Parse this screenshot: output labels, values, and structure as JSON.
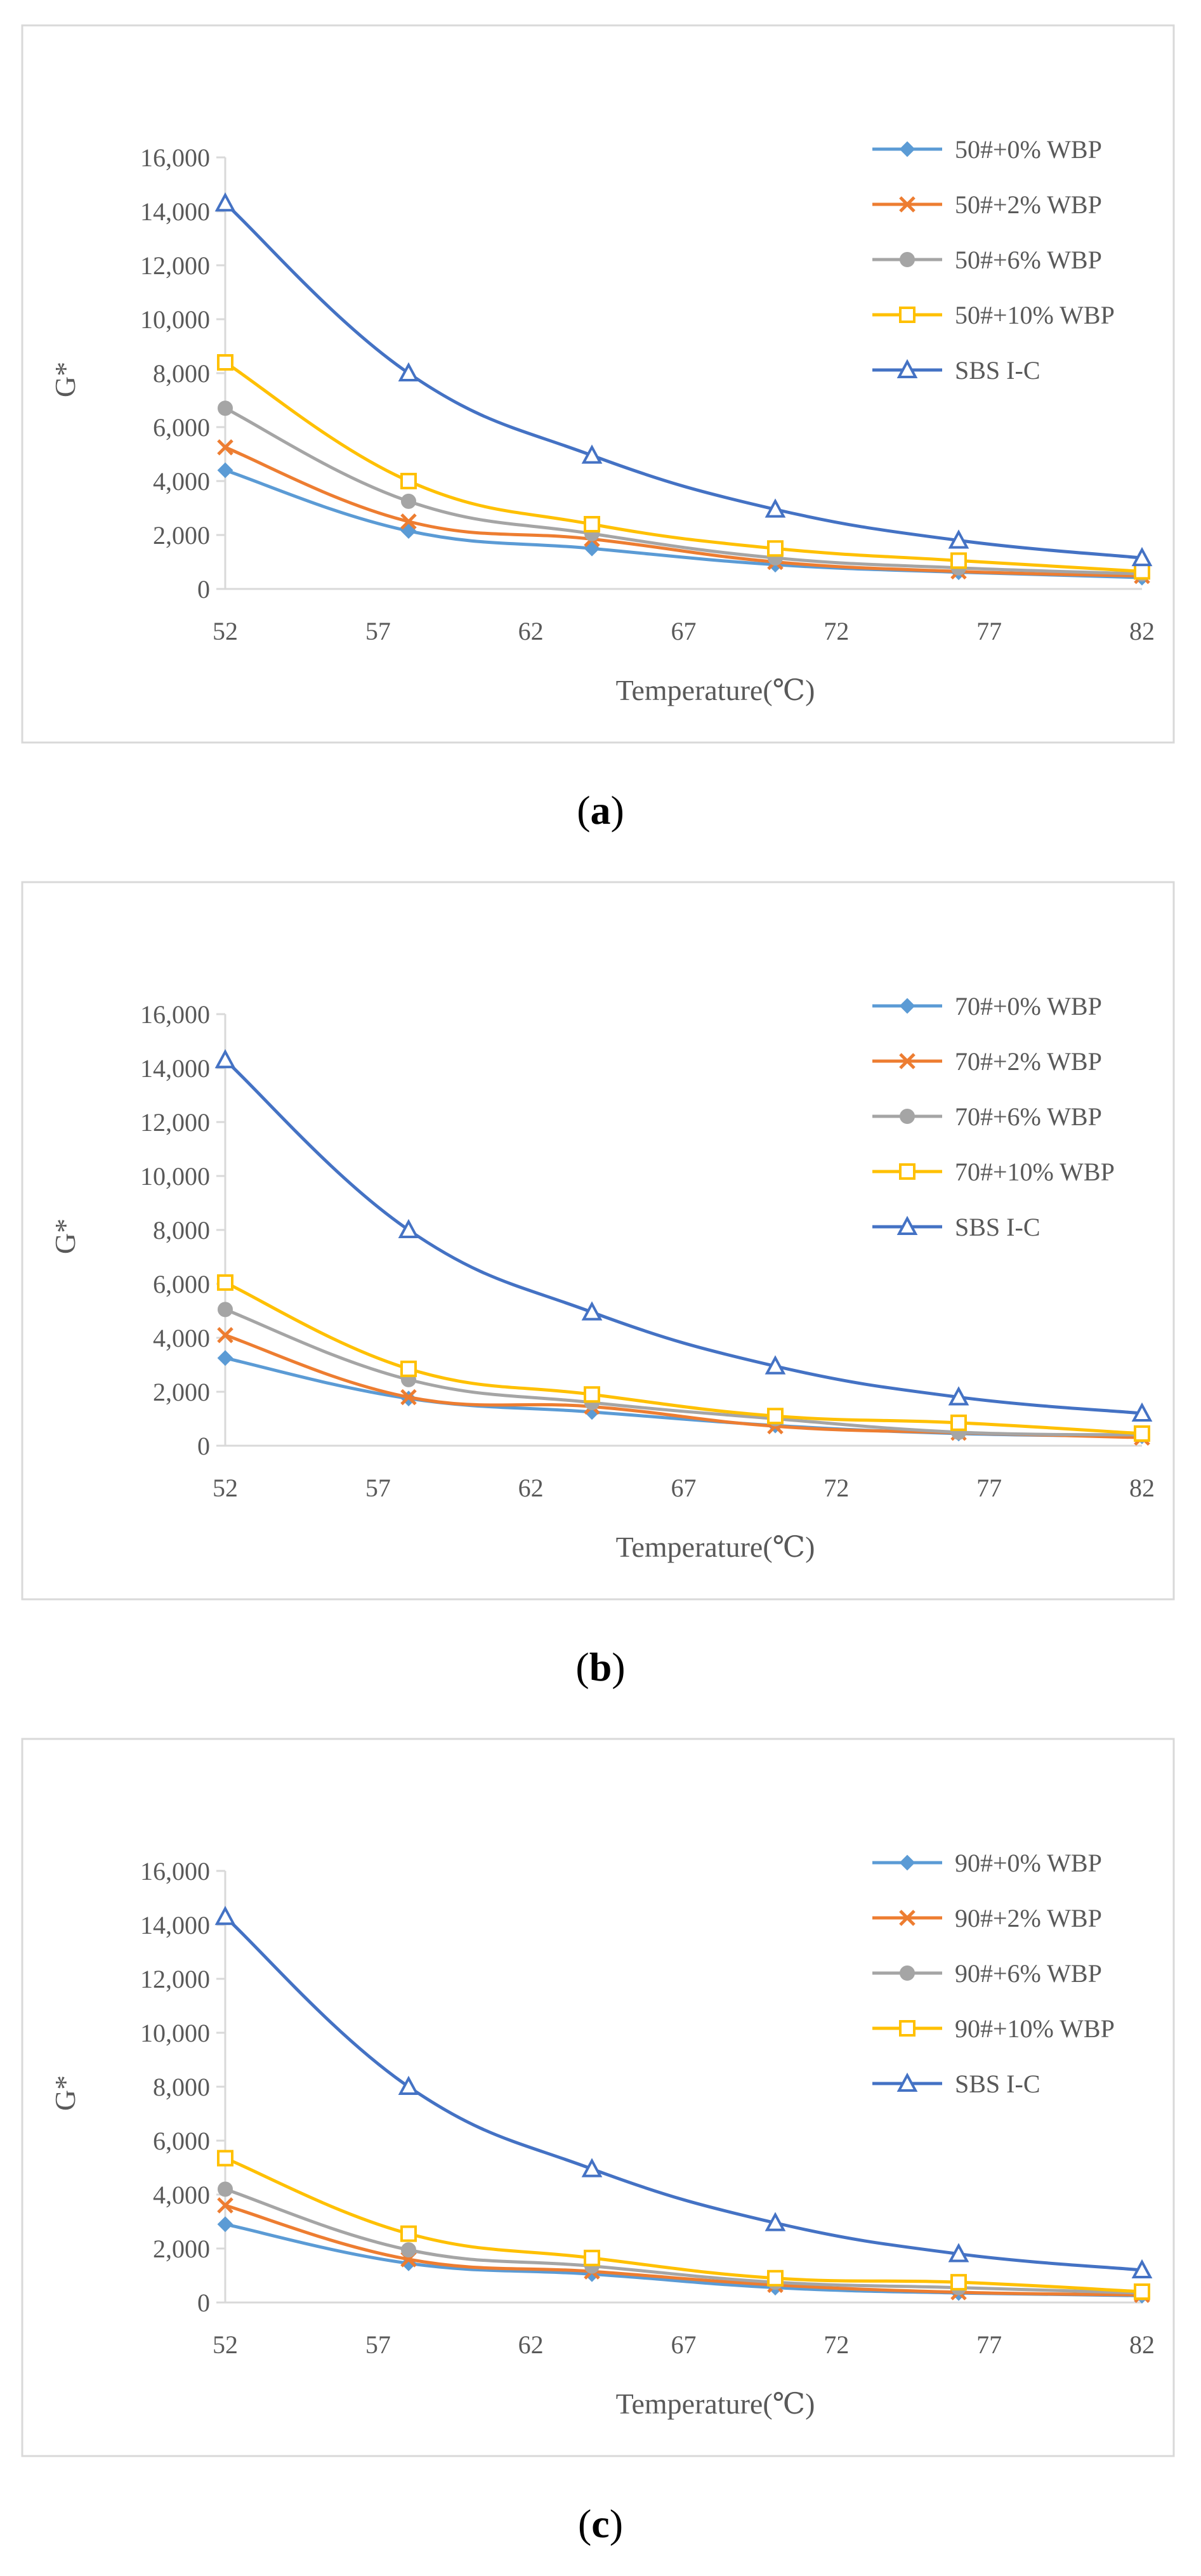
{
  "colors": {
    "s1": "#5B9BD5",
    "s2": "#ED7D31",
    "s3": "#A5A5A5",
    "s4": "#FFC000",
    "s5": "#4472C4",
    "axis": "#D9D9D9",
    "text": "#595959",
    "frame": "#D9D9D9"
  },
  "chart_data": [
    {
      "type": "line",
      "panel": "(a)",
      "caption_open": "(",
      "caption_letter": "a",
      "caption_close": ")",
      "xlabel": "Temperature(℃)",
      "ylabel": "G*",
      "x": [
        52,
        58,
        64,
        70,
        76,
        82
      ],
      "xticks": [
        "52",
        "57",
        "62",
        "67",
        "72",
        "77",
        "82"
      ],
      "yticks": [
        "0",
        "2,000",
        "4,000",
        "6,000",
        "8,000",
        "10,000",
        "12,000",
        "14,000",
        "16,000"
      ],
      "xlim": [
        52,
        82
      ],
      "ylim": [
        0,
        16000
      ],
      "series": [
        {
          "name": "50#+0% WBP",
          "marker": "diamond",
          "values": [
            4400,
            2150,
            1500,
            900,
            620,
            420
          ]
        },
        {
          "name": "50#+2% WBP",
          "marker": "x",
          "values": [
            5250,
            2500,
            1850,
            1000,
            650,
            480
          ]
        },
        {
          "name": "50#+6% WBP",
          "marker": "circle",
          "values": [
            6700,
            3250,
            2050,
            1150,
            780,
            560
          ]
        },
        {
          "name": "50#+10% WBP",
          "marker": "square",
          "values": [
            8400,
            4000,
            2400,
            1500,
            1050,
            650
          ]
        },
        {
          "name": "SBS I-C",
          "marker": "triangle",
          "values": [
            14300,
            8000,
            4950,
            2950,
            1800,
            1150
          ]
        }
      ]
    },
    {
      "type": "line",
      "panel": "(b)",
      "caption_open": "(",
      "caption_letter": "b",
      "caption_close": ")",
      "xlabel": "Temperature(℃)",
      "ylabel": "G*",
      "x": [
        52,
        58,
        64,
        70,
        76,
        82
      ],
      "xticks": [
        "52",
        "57",
        "62",
        "67",
        "72",
        "77",
        "82"
      ],
      "yticks": [
        "0",
        "2,000",
        "4,000",
        "6,000",
        "8,000",
        "10,000",
        "12,000",
        "14,000",
        "16,000"
      ],
      "xlim": [
        52,
        82
      ],
      "ylim": [
        0,
        16000
      ],
      "series": [
        {
          "name": "70#+0% WBP",
          "marker": "diamond",
          "values": [
            3250,
            1750,
            1250,
            750,
            450,
            350
          ]
        },
        {
          "name": "70#+2% WBP",
          "marker": "x",
          "values": [
            4100,
            1800,
            1450,
            720,
            480,
            300
          ]
        },
        {
          "name": "70#+6% WBP",
          "marker": "circle",
          "values": [
            5050,
            2450,
            1600,
            1000,
            500,
            400
          ]
        },
        {
          "name": "70#+10% WBP",
          "marker": "square",
          "values": [
            6050,
            2850,
            1900,
            1100,
            850,
            450
          ]
        },
        {
          "name": "SBS I-C",
          "marker": "triangle",
          "values": [
            14300,
            8000,
            4950,
            2950,
            1800,
            1200
          ]
        }
      ]
    },
    {
      "type": "line",
      "panel": "(c)",
      "caption_open": "(",
      "caption_letter": "c",
      "caption_close": ")",
      "xlabel": "Temperature(℃)",
      "ylabel": "G*",
      "x": [
        52,
        58,
        64,
        70,
        76,
        82
      ],
      "xticks": [
        "52",
        "57",
        "62",
        "67",
        "72",
        "77",
        "82"
      ],
      "yticks": [
        "0",
        "2,000",
        "4,000",
        "6,000",
        "8,000",
        "10,000",
        "12,000",
        "14,000",
        "16,000"
      ],
      "xlim": [
        52,
        82
      ],
      "ylim": [
        0,
        16000
      ],
      "series": [
        {
          "name": "90#+0% WBP",
          "marker": "diamond",
          "values": [
            2900,
            1450,
            1050,
            550,
            350,
            250
          ]
        },
        {
          "name": "90#+2% WBP",
          "marker": "x",
          "values": [
            3600,
            1600,
            1150,
            650,
            380,
            280
          ]
        },
        {
          "name": "90#+6% WBP",
          "marker": "circle",
          "values": [
            4200,
            1950,
            1350,
            750,
            550,
            350
          ]
        },
        {
          "name": "90#+10% WBP",
          "marker": "square",
          "values": [
            5350,
            2550,
            1650,
            900,
            750,
            400
          ]
        },
        {
          "name": "SBS I-C",
          "marker": "triangle",
          "values": [
            14300,
            8000,
            4950,
            2950,
            1800,
            1200
          ]
        }
      ]
    }
  ]
}
